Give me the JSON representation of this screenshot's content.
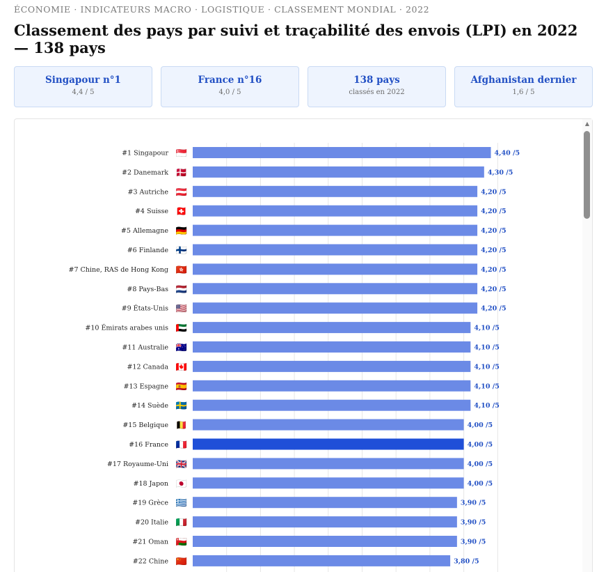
{
  "breadcrumb": "ÉCONOMIE · INDICATEURS MACRO · LOGISTIQUE · CLASSEMENT MONDIAL · 2022",
  "page_title": "Classement des pays par suivi et traçabilité des envois (LPI) en 2022 — 138 pays",
  "kpis": [
    {
      "title": "Singapour n°1",
      "sub": "4,4 / 5"
    },
    {
      "title": "France n°16",
      "sub": "4,0 / 5"
    },
    {
      "title": "138 pays",
      "sub": "classés en 2022"
    },
    {
      "title": "Afghanistan dernier",
      "sub": "1,6 / 5"
    }
  ],
  "colors": {
    "bar": "#6b8ae6",
    "bar_highlight": "#1f4fd8",
    "value_text": "#2250c4",
    "grid": "#e6e6e6",
    "kpi_bg": "#eef4fe",
    "kpi_border": "#c9daf4"
  },
  "chart_data": {
    "type": "bar",
    "orientation": "horizontal",
    "value_suffix": " /5",
    "highlight": "#16 France",
    "xlim": [
      0,
      5
    ],
    "grid": true,
    "categories": [
      "#1 Singapour",
      "#2 Danemark",
      "#3 Autriche",
      "#4 Suisse",
      "#5 Allemagne",
      "#6 Finlande",
      "#7 Chine, RAS de Hong Kong",
      "#8 Pays-Bas",
      "#9 États-Unis",
      "#10 Émirats arabes unis",
      "#11 Australie",
      "#12 Canada",
      "#13 Espagne",
      "#14 Suède",
      "#15 Belgique",
      "#16 France",
      "#17 Royaume-Uni",
      "#18 Japon",
      "#19 Grèce",
      "#20 Italie",
      "#21 Oman",
      "#22 Chine"
    ],
    "flags": [
      "🇸🇬",
      "🇩🇰",
      "🇦🇹",
      "🇨🇭",
      "🇩🇪",
      "🇫🇮",
      "🇭🇰",
      "🇳🇱",
      "🇺🇸",
      "🇦🇪",
      "🇦🇺",
      "🇨🇦",
      "🇪🇸",
      "🇸🇪",
      "🇧🇪",
      "🇫🇷",
      "🇬🇧",
      "🇯🇵",
      "🇬🇷",
      "🇮🇹",
      "🇴🇲",
      "🇨🇳"
    ],
    "values": [
      4.4,
      4.3,
      4.2,
      4.2,
      4.2,
      4.2,
      4.2,
      4.2,
      4.2,
      4.1,
      4.1,
      4.1,
      4.1,
      4.1,
      4.0,
      4.0,
      4.0,
      4.0,
      3.9,
      3.9,
      3.9,
      3.8
    ],
    "value_labels": [
      "4,40 /5",
      "4,30 /5",
      "4,20 /5",
      "4,20 /5",
      "4,20 /5",
      "4,20 /5",
      "4,20 /5",
      "4,20 /5",
      "4,20 /5",
      "4,10 /5",
      "4,10 /5",
      "4,10 /5",
      "4,10 /5",
      "4,10 /5",
      "4,00 /5",
      "4,00 /5",
      "4,00 /5",
      "4,00 /5",
      "3,90 /5",
      "3,90 /5",
      "3,90 /5",
      "3,80 /5"
    ]
  }
}
